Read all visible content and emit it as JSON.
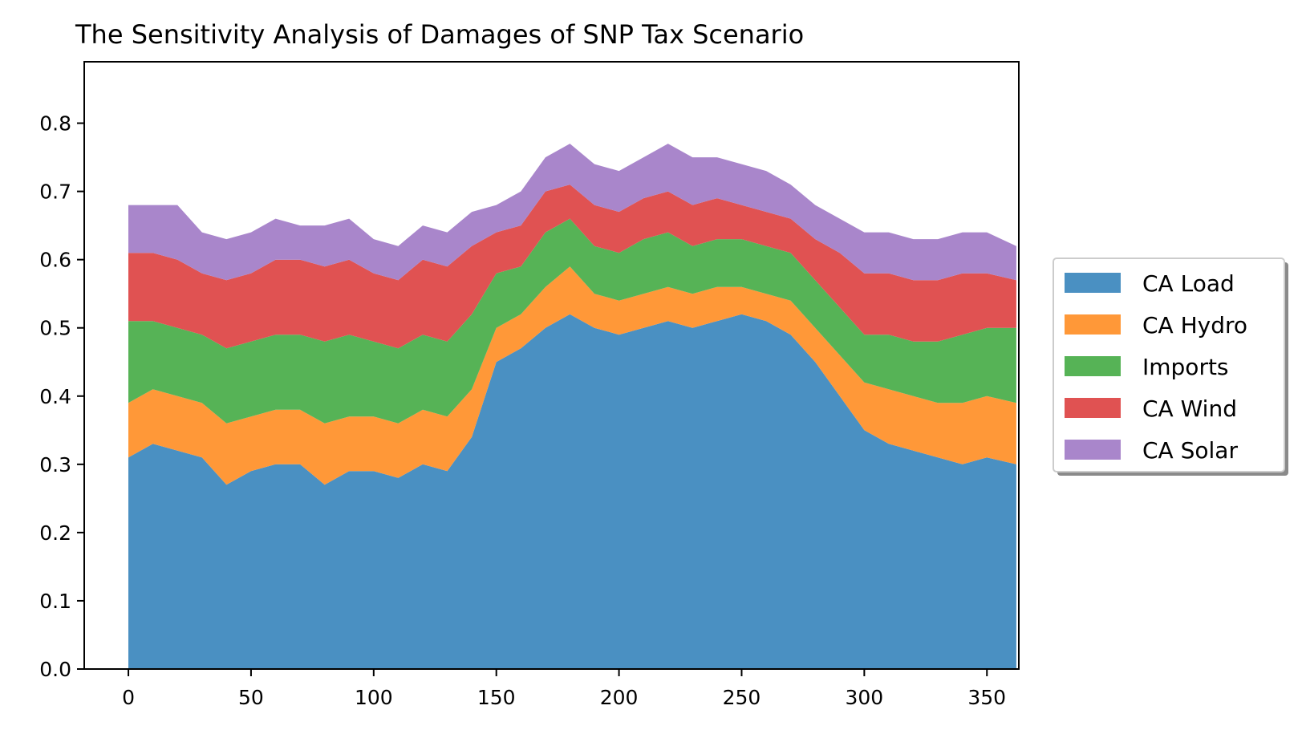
{
  "chart_data": {
    "type": "area",
    "title": "The Sensitivity Analysis of Damages of SNP Tax Scenario",
    "xlabel": "",
    "ylabel": "",
    "xlim": [
      -18,
      363
    ],
    "ylim": [
      0,
      0.89
    ],
    "x_ticks": [
      0,
      50,
      100,
      150,
      200,
      250,
      300,
      350
    ],
    "y_ticks": [
      0.0,
      0.1,
      0.2,
      0.3,
      0.4,
      0.5,
      0.6,
      0.7,
      0.8
    ],
    "y_tick_labels": [
      "0.0",
      "0.1",
      "0.2",
      "0.3",
      "0.4",
      "0.5",
      "0.6",
      "0.7",
      "0.8"
    ],
    "grid": false,
    "legend": {
      "placement": "outside-right"
    },
    "x_day_step": 10,
    "x": [
      0,
      10,
      20,
      30,
      40,
      50,
      60,
      70,
      80,
      90,
      100,
      110,
      120,
      130,
      140,
      150,
      160,
      170,
      180,
      190,
      200,
      210,
      220,
      230,
      240,
      250,
      260,
      270,
      280,
      290,
      300,
      310,
      320,
      330,
      340,
      350,
      362
    ],
    "series": [
      {
        "name": "CA Load",
        "color": "#4a90c2",
        "values": [
          0.31,
          0.33,
          0.32,
          0.31,
          0.27,
          0.29,
          0.3,
          0.3,
          0.27,
          0.29,
          0.29,
          0.28,
          0.3,
          0.29,
          0.34,
          0.45,
          0.47,
          0.5,
          0.52,
          0.5,
          0.49,
          0.5,
          0.51,
          0.5,
          0.51,
          0.52,
          0.51,
          0.49,
          0.45,
          0.4,
          0.35,
          0.33,
          0.32,
          0.31,
          0.3,
          0.31,
          0.3
        ]
      },
      {
        "name": "CA Hydro",
        "color": "#ff9838",
        "values": [
          0.08,
          0.08,
          0.08,
          0.08,
          0.09,
          0.08,
          0.08,
          0.08,
          0.09,
          0.08,
          0.08,
          0.08,
          0.08,
          0.08,
          0.07,
          0.05,
          0.05,
          0.06,
          0.07,
          0.05,
          0.05,
          0.05,
          0.05,
          0.05,
          0.05,
          0.04,
          0.04,
          0.05,
          0.05,
          0.06,
          0.07,
          0.08,
          0.08,
          0.08,
          0.09,
          0.09,
          0.09
        ]
      },
      {
        "name": "Imports",
        "color": "#56b356",
        "values": [
          0.12,
          0.1,
          0.1,
          0.1,
          0.11,
          0.11,
          0.11,
          0.11,
          0.12,
          0.12,
          0.11,
          0.11,
          0.11,
          0.11,
          0.11,
          0.08,
          0.07,
          0.08,
          0.07,
          0.07,
          0.07,
          0.08,
          0.08,
          0.07,
          0.07,
          0.07,
          0.07,
          0.07,
          0.07,
          0.07,
          0.07,
          0.08,
          0.08,
          0.09,
          0.1,
          0.1,
          0.11
        ]
      },
      {
        "name": "CA Wind",
        "color": "#e05252",
        "values": [
          0.1,
          0.1,
          0.1,
          0.09,
          0.1,
          0.1,
          0.11,
          0.11,
          0.11,
          0.11,
          0.1,
          0.1,
          0.11,
          0.11,
          0.1,
          0.06,
          0.06,
          0.06,
          0.05,
          0.06,
          0.06,
          0.06,
          0.06,
          0.06,
          0.06,
          0.05,
          0.05,
          0.05,
          0.06,
          0.08,
          0.09,
          0.09,
          0.09,
          0.09,
          0.09,
          0.08,
          0.07
        ]
      },
      {
        "name": "CA Solar",
        "color": "#a986cb",
        "values": [
          0.07,
          0.07,
          0.08,
          0.06,
          0.06,
          0.06,
          0.06,
          0.05,
          0.06,
          0.06,
          0.05,
          0.05,
          0.05,
          0.05,
          0.05,
          0.04,
          0.05,
          0.05,
          0.06,
          0.06,
          0.06,
          0.06,
          0.07,
          0.07,
          0.06,
          0.06,
          0.06,
          0.05,
          0.05,
          0.05,
          0.06,
          0.06,
          0.06,
          0.06,
          0.06,
          0.06,
          0.05
        ]
      }
    ]
  }
}
